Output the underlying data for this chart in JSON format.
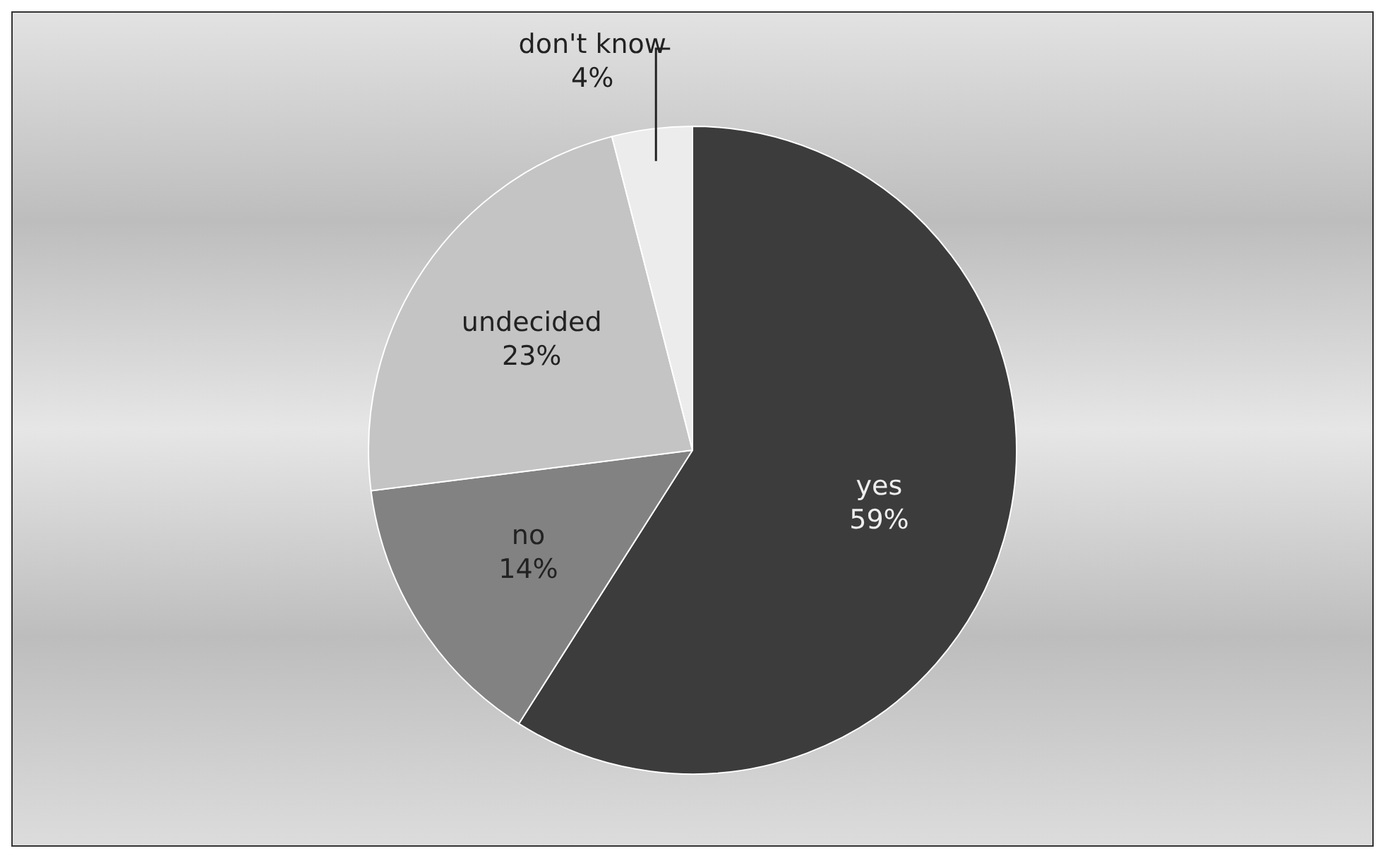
{
  "chart_data": {
    "type": "pie",
    "categories": [
      "yes",
      "no",
      "undecided",
      "don't know"
    ],
    "values": [
      59,
      14,
      23,
      4
    ],
    "colors": [
      "#3c3c3c",
      "#828282",
      "#c4c4c4",
      "#ececec"
    ],
    "value_labels": [
      "59%",
      "14%",
      "23%",
      "4%"
    ],
    "legend": false
  }
}
